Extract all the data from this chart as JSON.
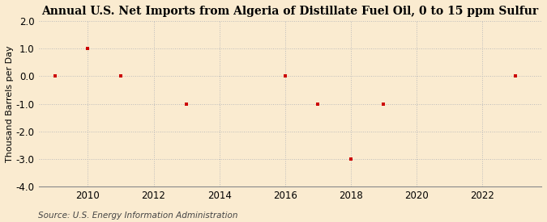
{
  "title": "Annual U.S. Net Imports from Algeria of Distillate Fuel Oil, 0 to 15 ppm Sulfur",
  "ylabel": "Thousand Barrels per Day",
  "source": "Source: U.S. Energy Information Administration",
  "background_color": "#faebd0",
  "plot_background_color": "#faebd0",
  "data_x": [
    2009,
    2010,
    2011,
    2013,
    2016,
    2017,
    2018,
    2019,
    2023
  ],
  "data_y": [
    0.0,
    1.0,
    0.0,
    -1.0,
    0.0,
    -1.0,
    -3.0,
    -1.0,
    0.0
  ],
  "xlim": [
    2008.5,
    2023.8
  ],
  "ylim": [
    -4.0,
    2.0
  ],
  "yticks": [
    -4.0,
    -3.0,
    -2.0,
    -1.0,
    0.0,
    1.0,
    2.0
  ],
  "xticks": [
    2010,
    2012,
    2014,
    2016,
    2018,
    2020,
    2022
  ],
  "marker_color": "#cc0000",
  "marker": "s",
  "marker_size": 3.5,
  "grid_color": "#bbbbbb",
  "grid_style": ":",
  "title_fontsize": 10,
  "label_fontsize": 8,
  "tick_fontsize": 8.5,
  "source_fontsize": 7.5
}
